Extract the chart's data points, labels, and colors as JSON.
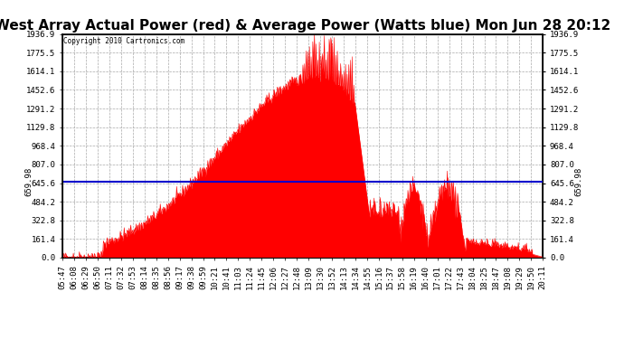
{
  "title": "West Array Actual Power (red) & Average Power (Watts blue) Mon Jun 28 20:12",
  "copyright": "Copyright 2010 Cartronics.com",
  "avg_power": 659.98,
  "ymax": 1936.9,
  "yticks": [
    0.0,
    161.4,
    322.8,
    484.2,
    645.6,
    807.0,
    968.4,
    1129.8,
    1291.2,
    1452.6,
    1614.1,
    1775.5,
    1936.9
  ],
  "xtick_labels": [
    "05:47",
    "06:08",
    "06:29",
    "06:50",
    "07:11",
    "07:32",
    "07:53",
    "08:14",
    "08:35",
    "08:56",
    "09:17",
    "09:38",
    "09:59",
    "10:21",
    "10:41",
    "11:03",
    "11:24",
    "11:45",
    "12:06",
    "12:27",
    "12:48",
    "13:09",
    "13:30",
    "13:52",
    "14:13",
    "14:34",
    "14:55",
    "15:16",
    "15:37",
    "15:58",
    "16:19",
    "16:40",
    "17:01",
    "17:22",
    "17:43",
    "18:04",
    "18:25",
    "18:47",
    "19:08",
    "19:29",
    "19:50",
    "20:11"
  ],
  "background_color": "#ffffff",
  "fill_color": "#ff0000",
  "avg_line_color": "#0000cc",
  "grid_color": "#aaaaaa",
  "title_fontsize": 11,
  "tick_fontsize": 6.5,
  "n_points": 880
}
